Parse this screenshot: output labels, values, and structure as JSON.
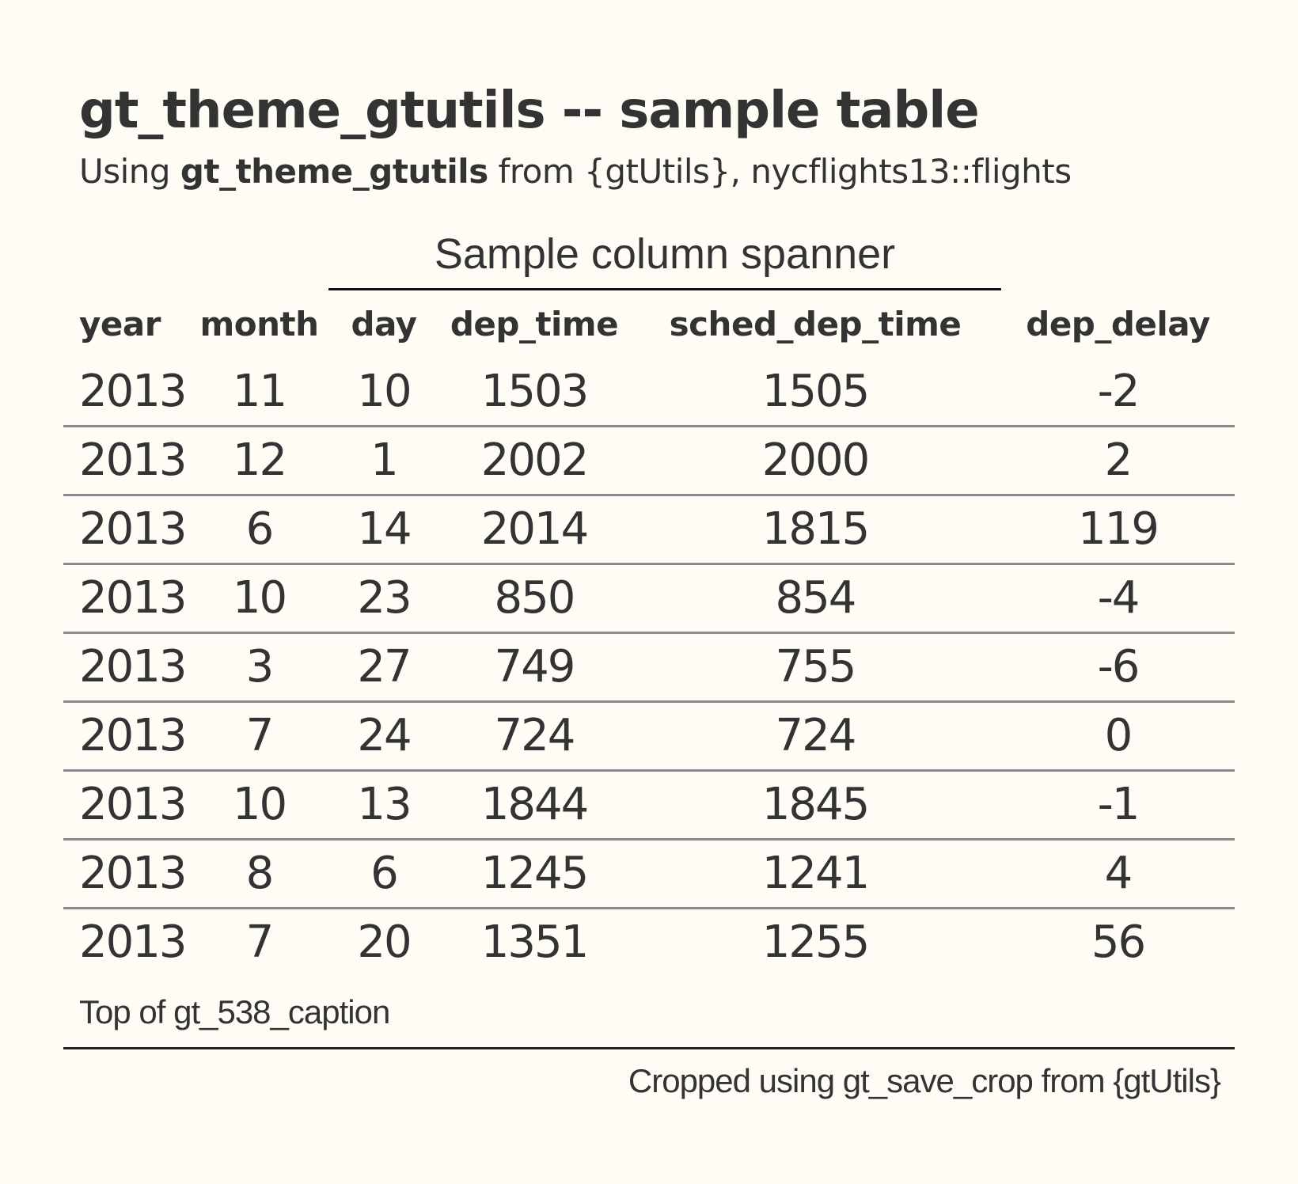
{
  "title": "gt_theme_gtutils -- sample table",
  "subtitle": {
    "prefix": "Using ",
    "bold": "gt_theme_gtutils",
    "suffix": " from {gtUtils}, nycflights13::flights"
  },
  "spanner": "Sample column spanner",
  "columns": [
    "year",
    "month",
    "day",
    "dep_time",
    "sched_dep_time",
    "dep_delay"
  ],
  "rows": [
    [
      "2013",
      "11",
      "10",
      "1503",
      "1505",
      "-2"
    ],
    [
      "2013",
      "12",
      "1",
      "2002",
      "2000",
      "2"
    ],
    [
      "2013",
      "6",
      "14",
      "2014",
      "1815",
      "119"
    ],
    [
      "2013",
      "10",
      "23",
      "850",
      "854",
      "-4"
    ],
    [
      "2013",
      "3",
      "27",
      "749",
      "755",
      "-6"
    ],
    [
      "2013",
      "7",
      "24",
      "724",
      "724",
      "0"
    ],
    [
      "2013",
      "10",
      "13",
      "1844",
      "1845",
      "-1"
    ],
    [
      "2013",
      "8",
      "6",
      "1245",
      "1241",
      "4"
    ],
    [
      "2013",
      "7",
      "20",
      "1351",
      "1255",
      "56"
    ]
  ],
  "caption": "Top of gt_538_caption",
  "source_note": "Cropped using gt_save_crop from {gtUtils}"
}
